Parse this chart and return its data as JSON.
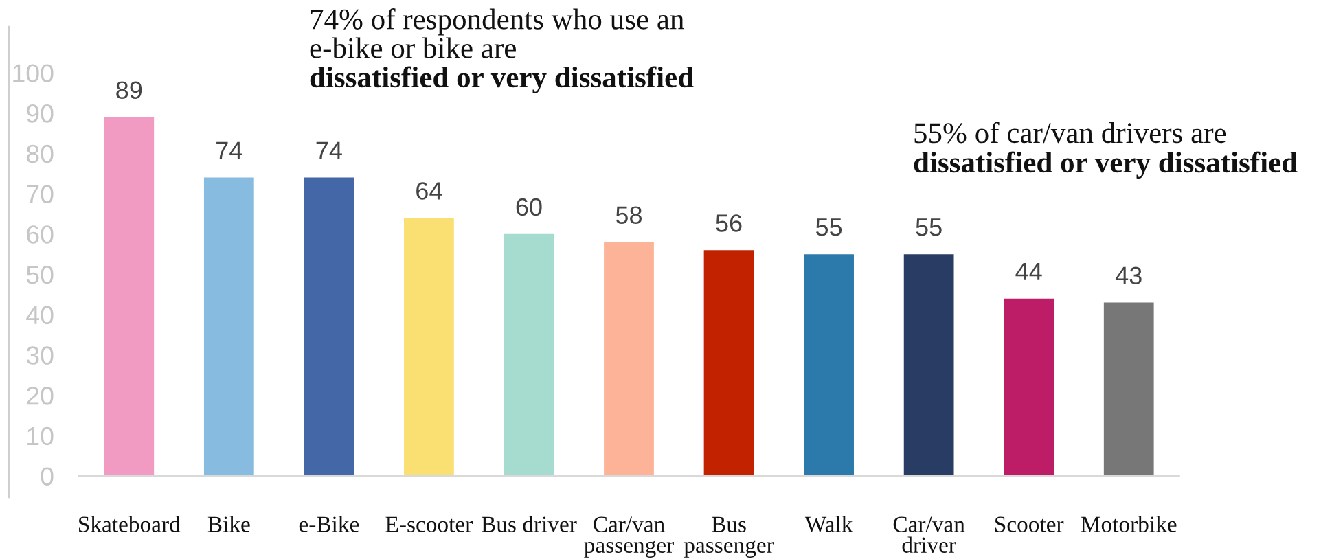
{
  "chart_data": {
    "type": "bar",
    "categories": [
      "Skateboard",
      "Bike",
      "e-Bike",
      "E-scooter",
      "Bus driver",
      "Car/van passenger",
      "Bus passenger",
      "Walk",
      "Car/van driver",
      "Scooter",
      "Motorbike"
    ],
    "values": [
      89,
      74,
      74,
      64,
      60,
      58,
      56,
      55,
      55,
      44,
      43
    ],
    "colors": [
      "#f19bc2",
      "#87bbe0",
      "#4467a7",
      "#fadf73",
      "#a5dccf",
      "#fdb397",
      "#c22200",
      "#2c7aab",
      "#293c63",
      "#bd1c66",
      "#777777"
    ],
    "ylim": [
      0,
      100
    ],
    "yticks": [
      0,
      10,
      20,
      30,
      40,
      50,
      60,
      70,
      80,
      90,
      100
    ],
    "data_labels": true,
    "annotations": [
      "74% of respondents who use an e-bike or bike are",
      "dissatisfied or very dissatisfied",
      "55% of car/van drivers are",
      "dissatisfied or very dissatisfied"
    ]
  }
}
